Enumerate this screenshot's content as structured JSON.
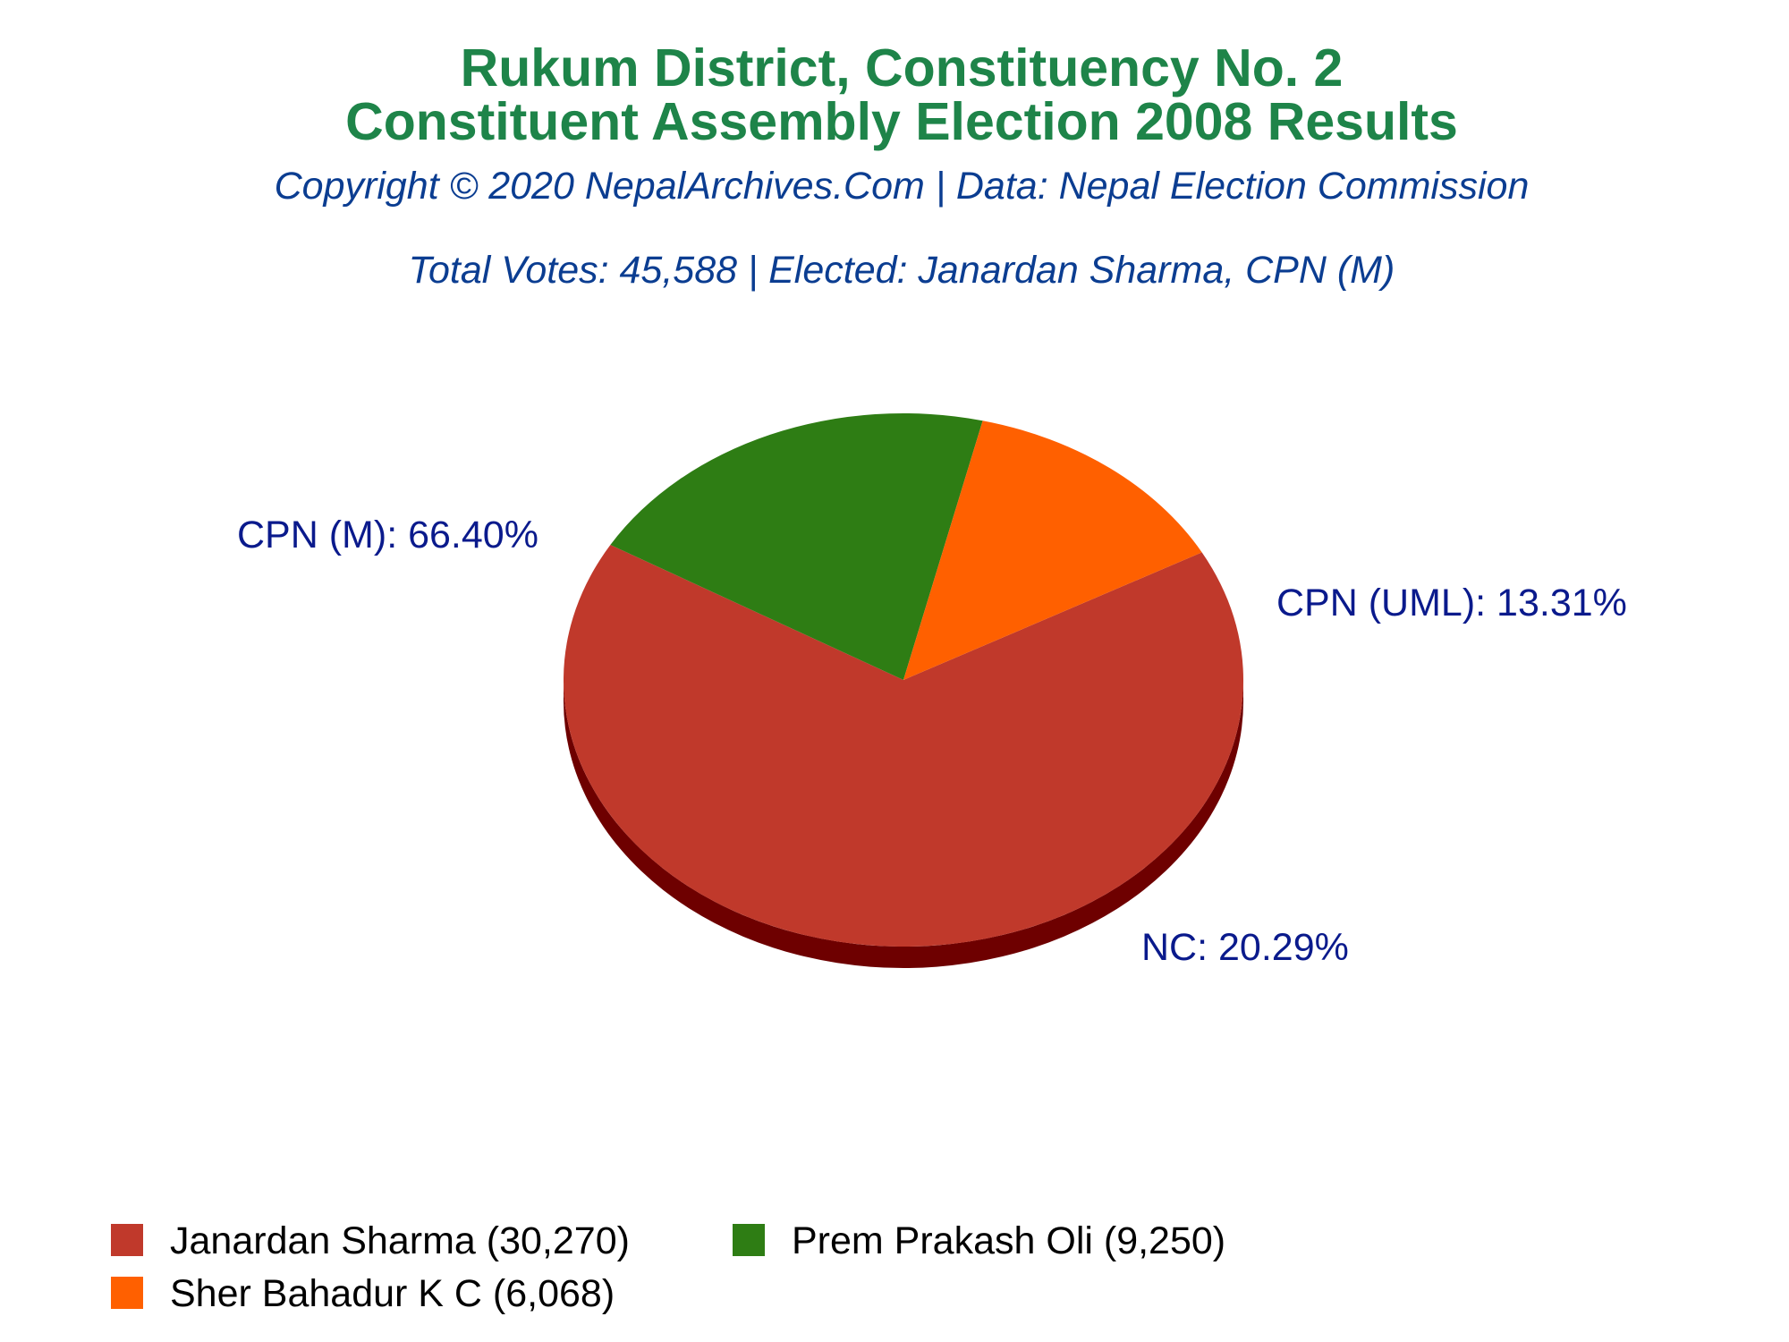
{
  "header": {
    "title_line1": "Rukum District, Constituency No. 2",
    "title_line2": "Constituent Assembly Election 2008 Results",
    "copyright": "Copyright © 2020 NepalArchives.Com | Data: Nepal Election Commission",
    "summary": "Total Votes: 45,588 | Elected: Janardan Sharma, CPN (M)"
  },
  "colors": {
    "title": "#1e8449",
    "subtitle": "#0b3d91",
    "slice_label": "#0a1a8c"
  },
  "chart_data": {
    "type": "pie",
    "style": "3d",
    "total_votes": 45588,
    "slices": [
      {
        "party": "CPN (M)",
        "candidate": "Janardan Sharma",
        "votes": 30270,
        "percent": 66.4,
        "label": "CPN (M): 66.40%",
        "legend": "Janardan Sharma (30,270)",
        "color": "#c0392b",
        "side_color": "#6e0000"
      },
      {
        "party": "NC",
        "candidate": "Prem Prakash Oli",
        "votes": 9250,
        "percent": 20.29,
        "label": "NC: 20.29%",
        "legend": "Prem Prakash Oli (9,250)",
        "color": "#2e7d14",
        "side_color": "#0f3300"
      },
      {
        "party": "CPN (UML)",
        "candidate": "Sher Bahadur K C",
        "votes": 6068,
        "percent": 13.31,
        "label": "CPN (UML): 13.31%",
        "legend": "Sher Bahadur K C (6,068)",
        "color": "#ff6000",
        "side_color": "#a53d00"
      }
    ],
    "legend_position": "bottom-left"
  }
}
